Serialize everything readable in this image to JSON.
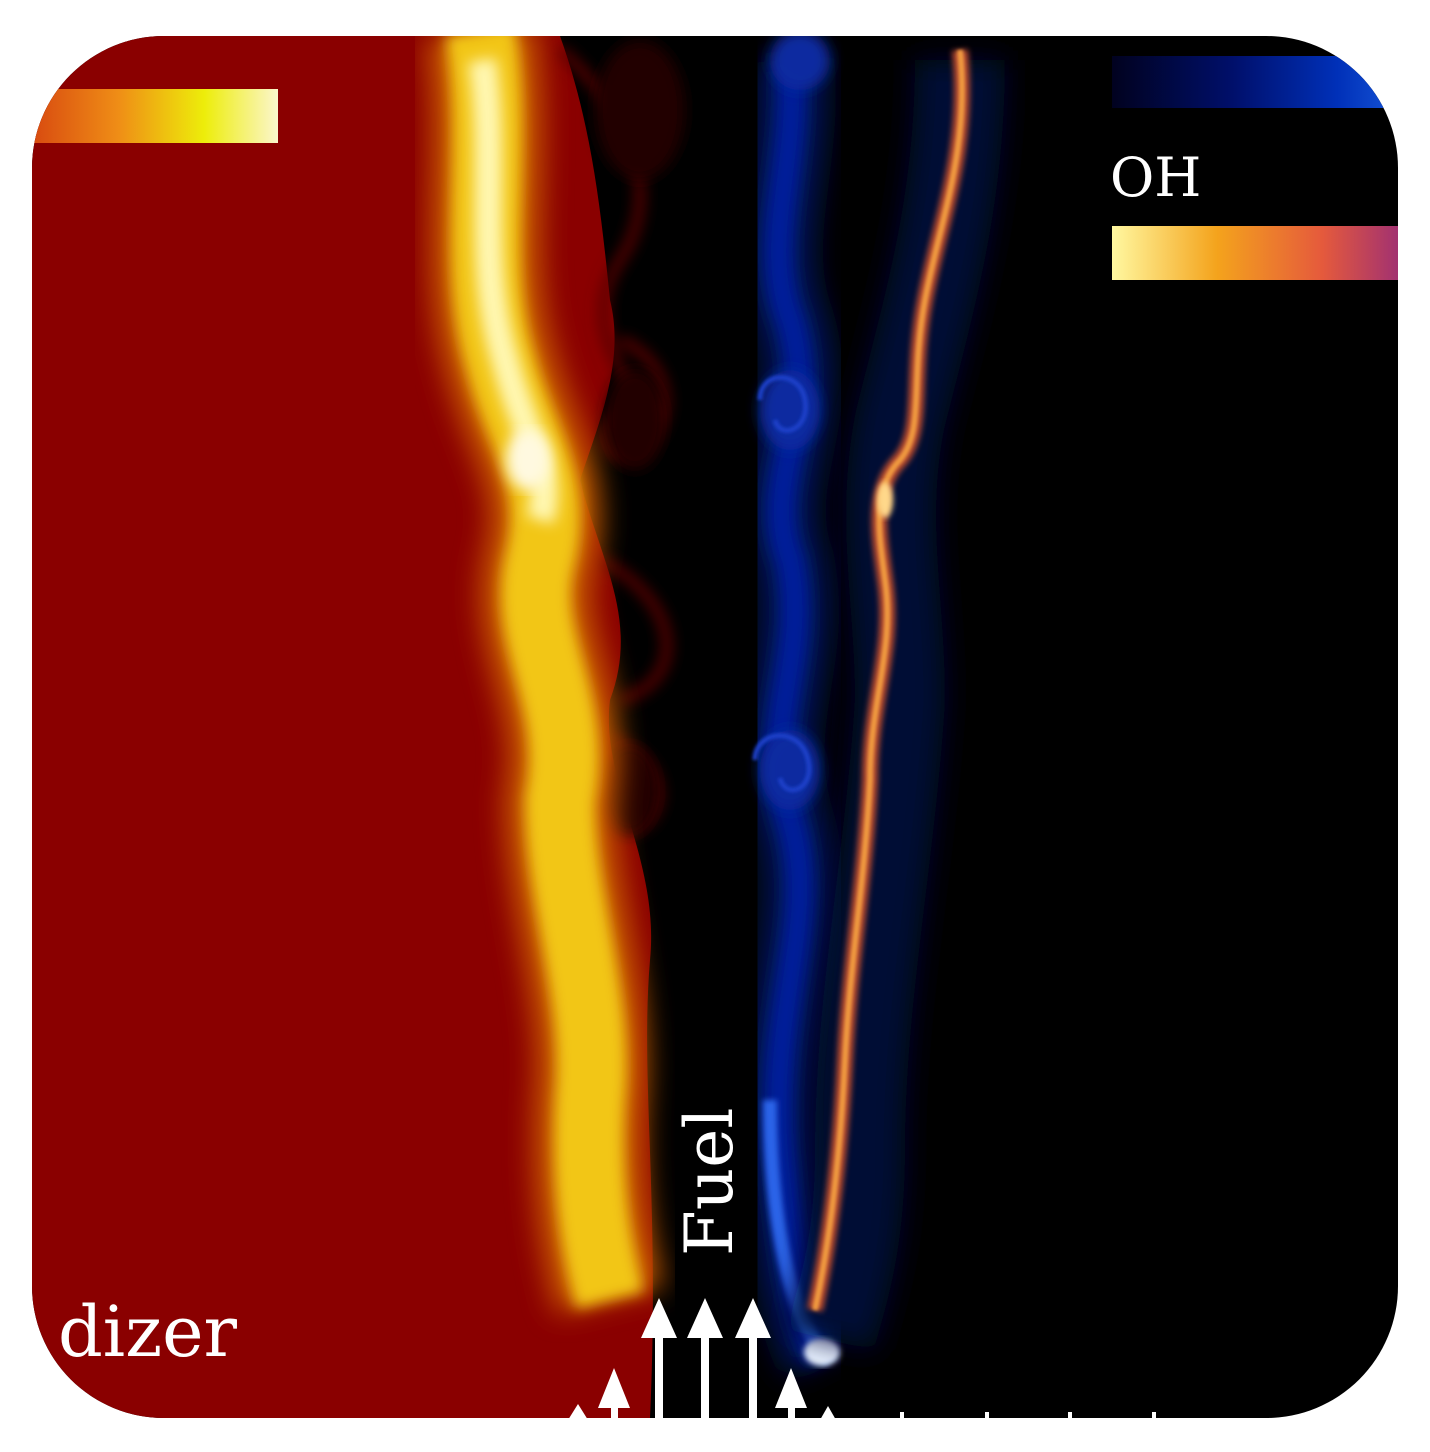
{
  "labels": {
    "oxidizer_fragment": "dizer",
    "fuel": "Fuel",
    "oh": "OH"
  },
  "colors": {
    "oxidizer_region": "#8a0000",
    "fuel_region": "#000000",
    "page_background": "#ffffff",
    "arrow": "#ffffff"
  },
  "colorbars": {
    "top_left": [
      "#d84a10",
      "#ef8d16",
      "#eded0a",
      "#fbf6cc"
    ],
    "top_right": [
      "#01021f",
      "#000f6a",
      "#0030b8",
      "#1a5cdd"
    ],
    "oh": [
      "#fff8a0",
      "#f4a31c",
      "#e55a3c",
      "#962a7a"
    ]
  }
}
